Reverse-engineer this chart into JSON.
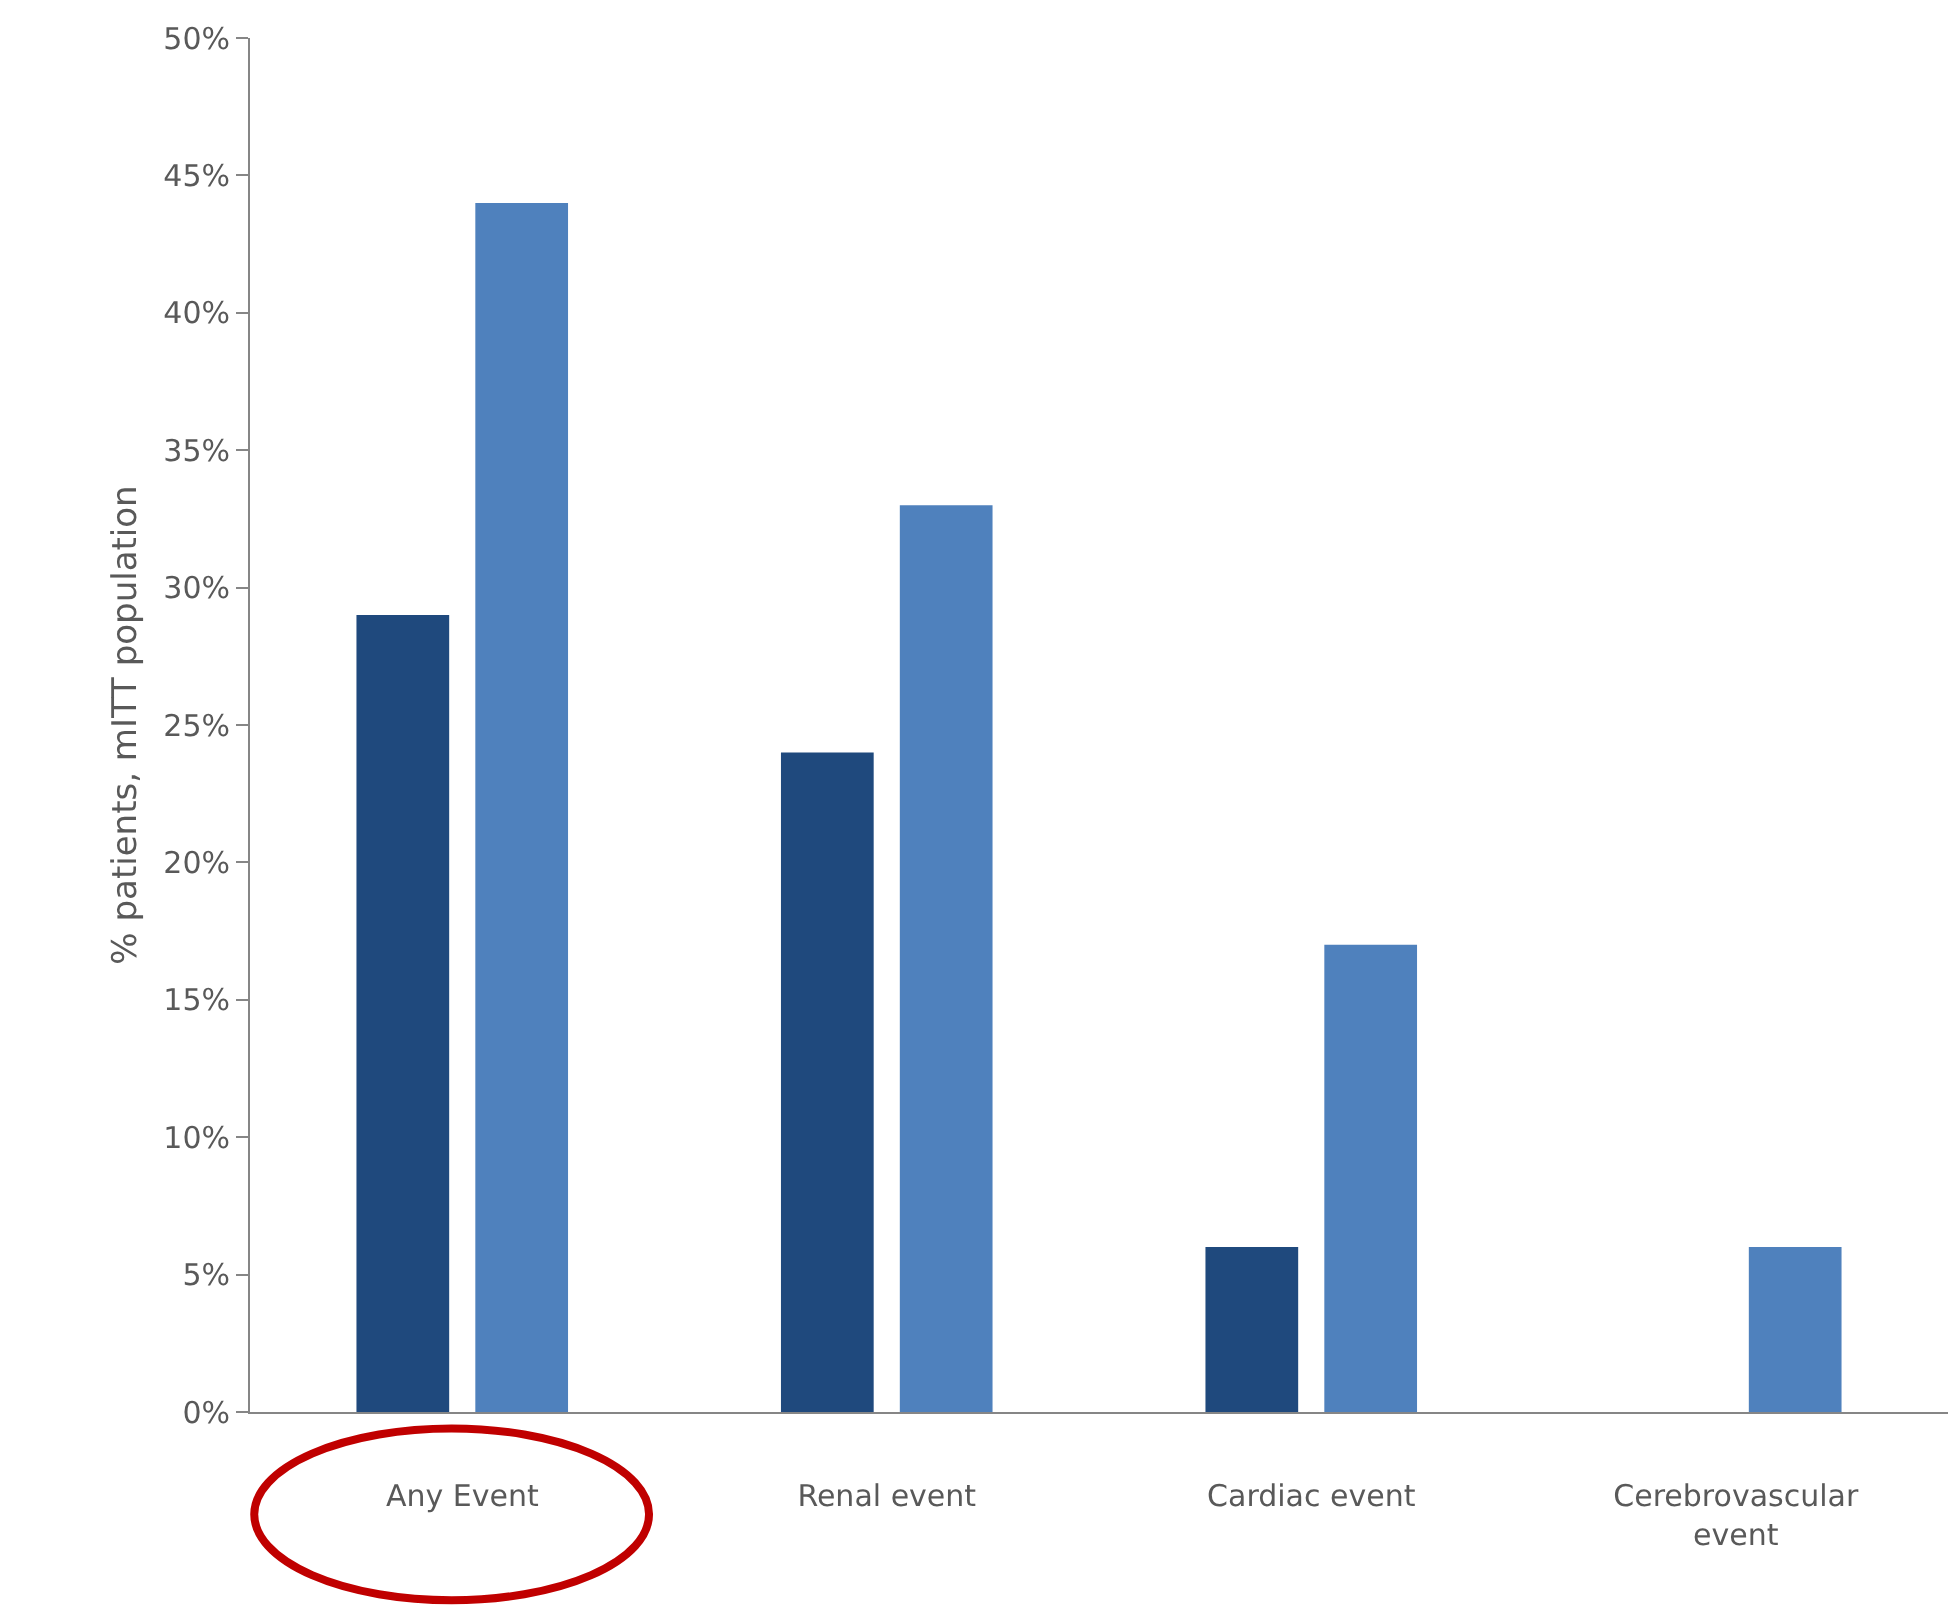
{
  "chart_data": {
    "type": "bar",
    "ylabel": "% patients, mITT population",
    "categories": [
      "Any Event",
      "Renal event",
      "Cardiac event",
      "Cerebrovascular event"
    ],
    "series": [
      {
        "color": "#1f497d",
        "values": [
          29,
          24,
          6,
          0
        ]
      },
      {
        "color": "#4f81bd",
        "values": [
          44,
          33,
          17,
          6
        ]
      }
    ],
    "ylim": [
      0,
      50
    ],
    "yticks": [
      {
        "value": 0,
        "label": "0%"
      },
      {
        "value": 5,
        "label": "5%"
      },
      {
        "value": 10,
        "label": "10%"
      },
      {
        "value": 15,
        "label": "15%"
      },
      {
        "value": 20,
        "label": "20%"
      },
      {
        "value": 25,
        "label": "25%"
      },
      {
        "value": 30,
        "label": "30%"
      },
      {
        "value": 35,
        "label": "35%"
      },
      {
        "value": 40,
        "label": "40%"
      },
      {
        "value": 45,
        "label": "45%"
      },
      {
        "value": 50,
        "label": "50%"
      }
    ]
  }
}
